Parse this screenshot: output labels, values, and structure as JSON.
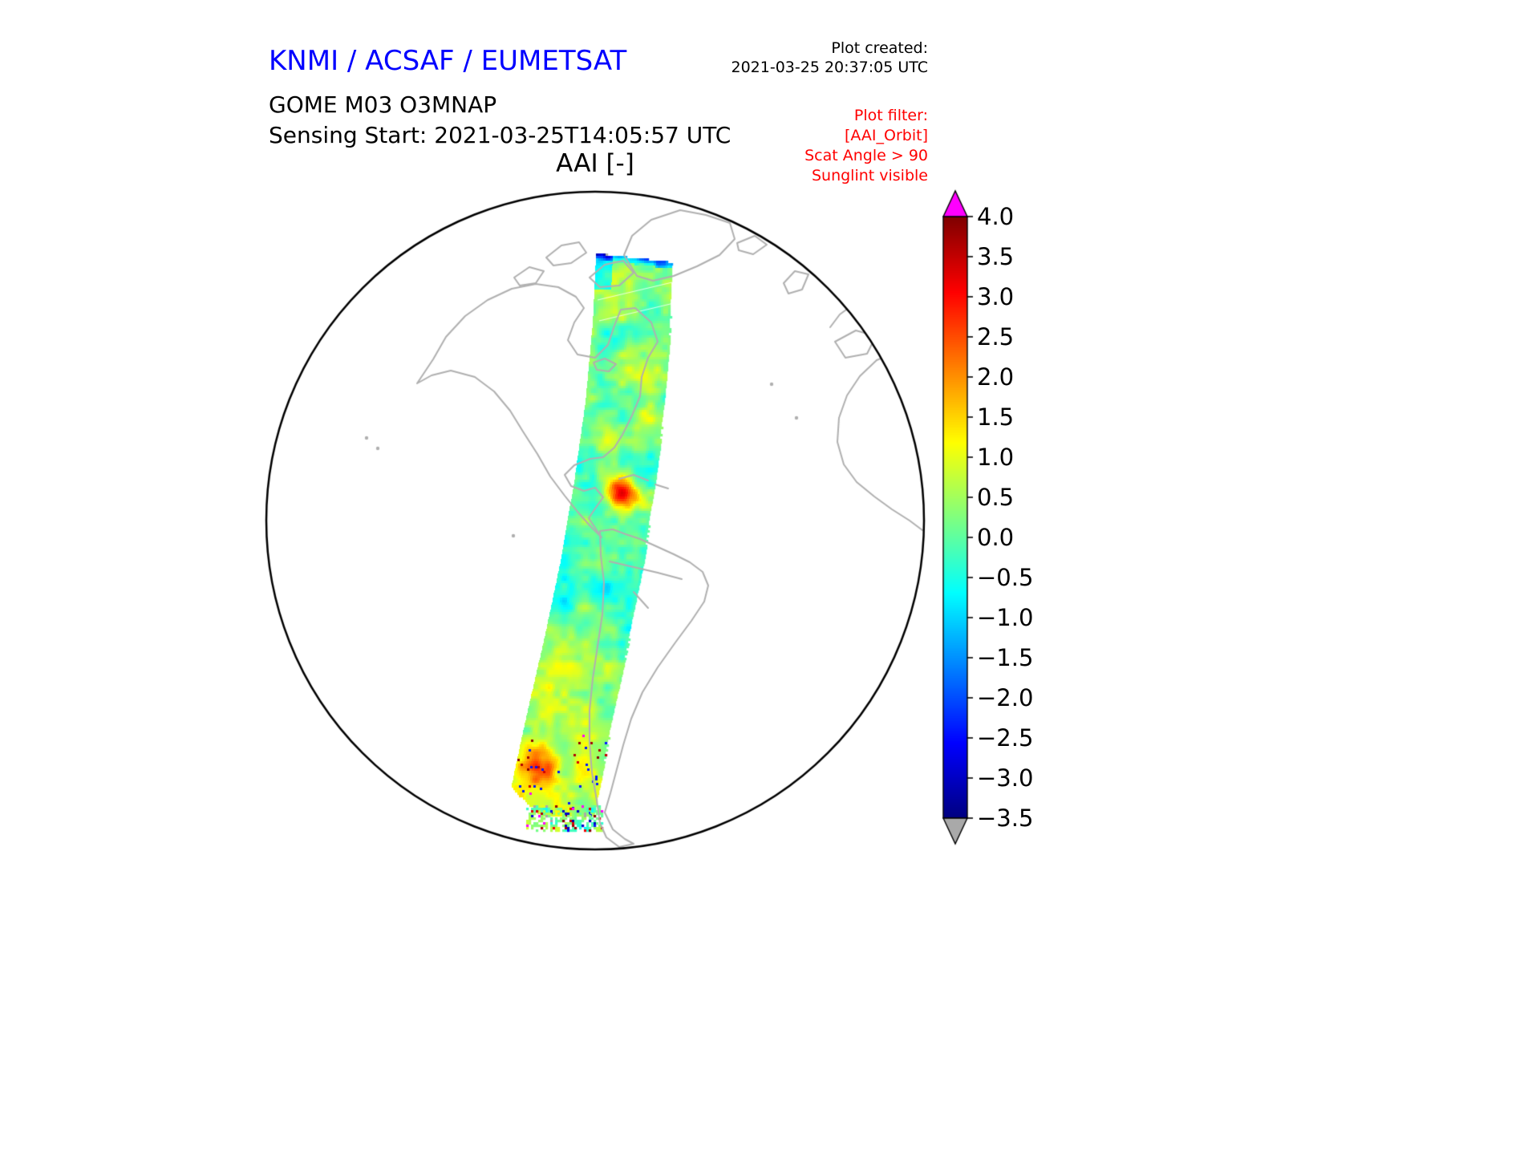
{
  "header": {
    "org_title": "KNMI / ACSAF / EUMETSAT",
    "plot_created_label": "Plot created:",
    "plot_created_value": "2021-03-25 20:37:05 UTC",
    "product_line1": "GOME M03 O3MNAP",
    "product_line2": "Sensing Start: 2021-03-25T14:05:57 UTC",
    "plot_title": "AAI [-]"
  },
  "plot_filter": {
    "title": "Plot filter:",
    "lines": [
      "[AAI_Orbit]",
      "Scat Angle > 90",
      "Sunglint visible"
    ]
  },
  "colorbar": {
    "ticks": [
      "4.0",
      "3.5",
      "3.0",
      "2.5",
      "2.0",
      "1.5",
      "1.0",
      "0.5",
      "0.0",
      "−0.5",
      "−1.0",
      "−1.5",
      "−2.0",
      "−2.5",
      "−3.0",
      "−3.5"
    ],
    "vmin": -3.5,
    "vmax": 4.0,
    "colormap": "jet",
    "over_color": "#ff00ff",
    "under_color": "#a9a9a9"
  },
  "colors": {
    "title_blue": "#0000ff",
    "filter_red": "#ff0000",
    "coastline_gray": "#b0b0b0",
    "globe_outline": "#000000"
  },
  "chart_data": {
    "type": "heatmap",
    "subtype": "satellite-orbit-swath-on-orthographic-globe",
    "title": "AAI [-]",
    "instrument": "GOME M03 O3MNAP",
    "sensing_start": "2021-03-25T14:05:57 UTC",
    "projection": "orthographic (Atlantic / Americas view)",
    "quantity": "Absorbing Aerosol Index (dimensionless)",
    "value_range": [
      -3.5,
      4.0
    ],
    "colorbar_ticks": [
      4.0,
      3.5,
      3.0,
      2.5,
      2.0,
      1.5,
      1.0,
      0.5,
      0.0,
      -0.5,
      -1.0,
      -1.5,
      -2.0,
      -2.5,
      -3.0,
      -3.5
    ],
    "over_range_color": "#ff00ff",
    "under_range_color": "#a9a9a9",
    "swath": {
      "orientation": "north-to-south descending orbit over the Americas",
      "typical_value_range": [
        -1.0,
        1.0
      ],
      "notable_features": [
        {
          "label": "aerosol hotspot",
          "approx_value": 3.0,
          "location": "northern South America / Caribbean coast"
        },
        {
          "label": "elevated yellow-orange values",
          "approx_value": 1.5,
          "location": "southern end of swath"
        },
        {
          "label": "dark blue low values",
          "approx_value": -2.0,
          "location": "northern swath edge"
        },
        {
          "label": "scattered extreme pixels",
          "approx_value": 3.8,
          "location": "southernmost swath rows"
        }
      ]
    },
    "legend_position": "right vertical colorbar with over/under arrows"
  }
}
